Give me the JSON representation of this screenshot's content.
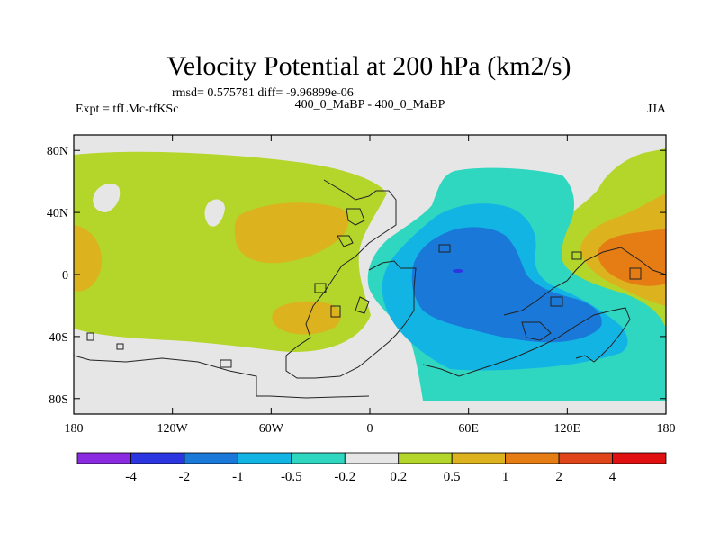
{
  "chart_data": {
    "type": "contour-map",
    "title": "Velocity Potential at 200 hPa (km2/s)",
    "stats_line": "rmsd= 0.575781 diff= -9.96899e-06",
    "left_label": "Expt = tfLMc-tfKSc",
    "center_label": "400_0_MaBP - 400_0_MaBP",
    "right_label": "JJA",
    "xlim": [
      -180,
      180
    ],
    "ylim": [
      -90,
      90
    ],
    "x_ticks": [
      {
        "value": -180,
        "label": "180"
      },
      {
        "value": -120,
        "label": "120W"
      },
      {
        "value": -60,
        "label": "60W"
      },
      {
        "value": 0,
        "label": "0"
      },
      {
        "value": 60,
        "label": "60E"
      },
      {
        "value": 120,
        "label": "120E"
      },
      {
        "value": 180,
        "label": "180"
      }
    ],
    "y_ticks": [
      {
        "value": 80,
        "label": "80N"
      },
      {
        "value": 40,
        "label": "40N"
      },
      {
        "value": 0,
        "label": "0"
      },
      {
        "value": -40,
        "label": "40S"
      },
      {
        "value": -80,
        "label": "80S"
      }
    ],
    "levels": [
      "-4",
      "-2",
      "-1",
      "-0.5",
      "-0.2",
      "0.2",
      "0.5",
      "1",
      "2",
      "4"
    ],
    "colors": [
      "#8a2be2",
      "#2b35e0",
      "#1a78d8",
      "#12b4e4",
      "#2fd7c0",
      "#e6e6e6",
      "#b4d52a",
      "#dcb21e",
      "#e57d14",
      "#e0451a",
      "#e01010"
    ],
    "background": "#e6e6e6",
    "regions": [
      {
        "name": "positive-west-band",
        "bin": 6
      },
      {
        "name": "positive-west-anomaly",
        "bin": 7
      },
      {
        "name": "positive-pacific-edge",
        "bin": 6
      },
      {
        "name": "positive-pacific-core",
        "bin": 7
      },
      {
        "name": "positive-pacific-max",
        "bin": 8
      },
      {
        "name": "negative-outer",
        "bin": 4
      },
      {
        "name": "negative-mid",
        "bin": 3
      },
      {
        "name": "negative-inner",
        "bin": 2
      },
      {
        "name": "negative-core",
        "bin": 1
      }
    ]
  }
}
